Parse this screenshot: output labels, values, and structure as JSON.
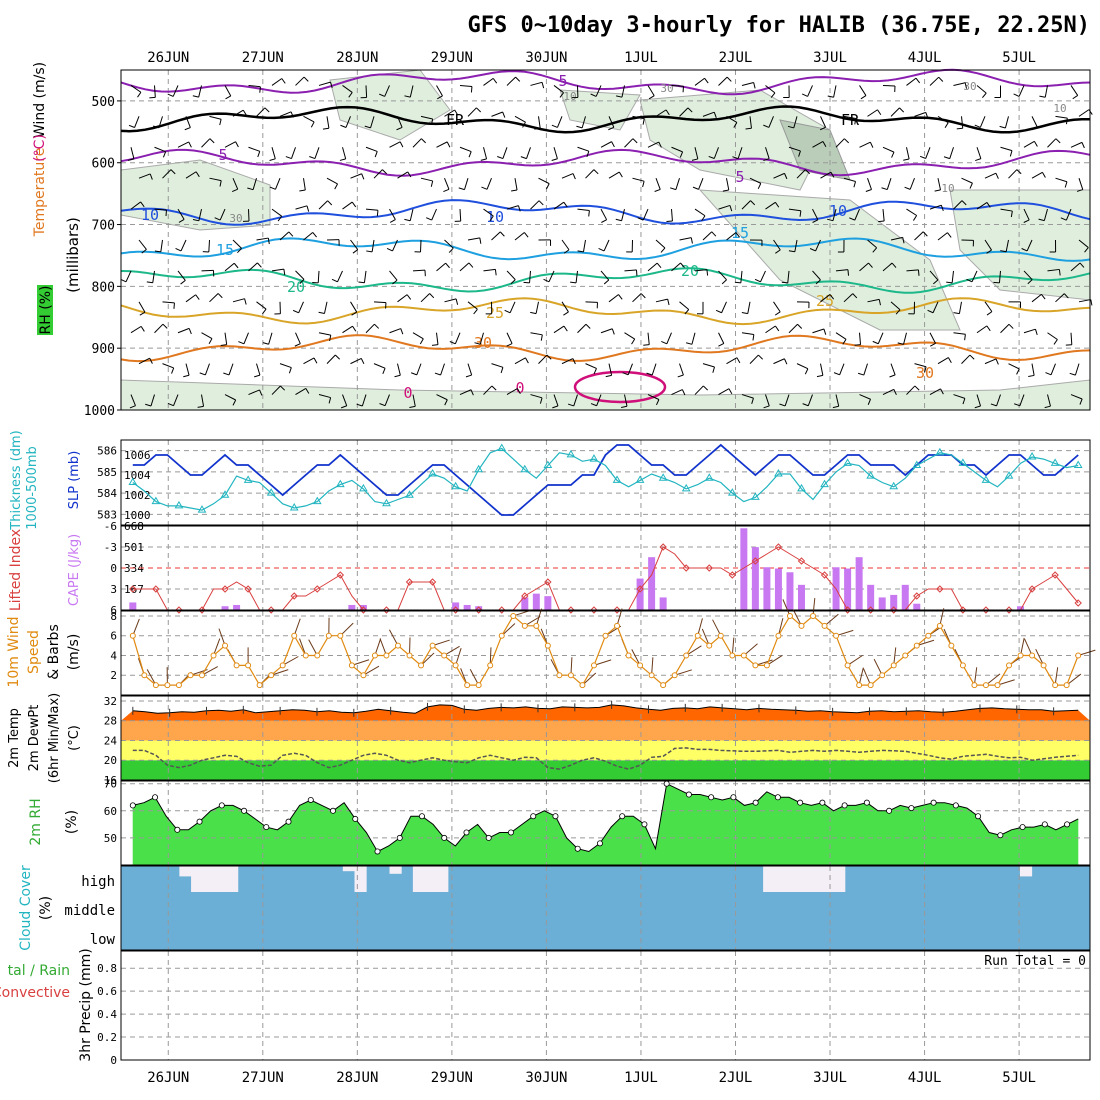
{
  "title": "GFS 0~10day 3-hourly for HALIB (36.75E, 22.25N)",
  "colors": {
    "rh_high": "#00e000",
    "rh_low": "#76d276",
    "temp_band1": "#ff6600",
    "temp_band2": "#ffa64d",
    "temp_band3": "#ffff66",
    "temp_band4": "#33cc33",
    "cloud": "#6baed6",
    "cloud_clear": "#f4eef6",
    "cape": "#c879f2",
    "li_line": "#d94040",
    "slp_line": "#1133cc",
    "thick_line": "#22b5c0",
    "wind_line": "#e08a10"
  },
  "chart_data": {
    "type": "line",
    "x_dates": [
      "26JUN",
      "27JUN",
      "28JUN",
      "29JUN",
      "30JUN",
      "1JUL",
      "2JUL",
      "3JUL",
      "4JUL",
      "5JUL"
    ],
    "x_hours_range": [
      -12,
      234
    ],
    "panels": [
      {
        "id": "upper",
        "ylabel_parts": [
          "RH (%)",
          "Temperature (°C)",
          "Wind (m/s)"
        ],
        "ylabel2": "(millibars)",
        "yticks": [
          500,
          600,
          700,
          800,
          900,
          1000
        ],
        "ylim": [
          450,
          1000
        ],
        "isotherm_labels": [
          "FR",
          "5",
          "10",
          "15",
          "20",
          "25",
          "30",
          "0"
        ],
        "rh_labels": [
          "10",
          "30"
        ],
        "isotherms": [
          {
            "label": "5",
            "pressure": 470,
            "color": "#8b1fb0"
          },
          {
            "label": "FR",
            "pressure": 530,
            "color": "#000000"
          },
          {
            "label": "5",
            "pressure": 600,
            "color": "#8b1fb0"
          },
          {
            "label": "10",
            "pressure": 680,
            "color": "#1f4fdd"
          },
          {
            "label": "15",
            "pressure": 740,
            "color": "#1ea0e0"
          },
          {
            "label": "20",
            "pressure": 790,
            "color": "#1cb88a"
          },
          {
            "label": "25",
            "pressure": 840,
            "color": "#d9a528"
          },
          {
            "label": "30",
            "pressure": 900,
            "color": "#e07820"
          }
        ]
      },
      {
        "id": "slp",
        "ylabel_left": "1000-500mb Thickness (dm)",
        "ylabel_right": "SLP (mb)",
        "yticks_left": [
          583,
          584,
          585,
          586
        ],
        "yticks_right": [
          1000,
          1002,
          1004,
          1006
        ],
        "slp": [
          1005,
          1005,
          1006,
          1006,
          1005,
          1004,
          1004,
          1005,
          1006,
          1005,
          1005,
          1004,
          1003,
          1002,
          1003,
          1004,
          1005,
          1005,
          1006,
          1005,
          1004,
          1003,
          1002,
          1002,
          1003,
          1004,
          1005,
          1005,
          1004,
          1003,
          1002,
          1001,
          1000,
          1000,
          1001,
          1002,
          1003,
          1003,
          1003,
          1004,
          1004,
          1006,
          1007,
          1007,
          1006,
          1005,
          1005,
          1004,
          1004,
          1005,
          1006,
          1007,
          1006,
          1005,
          1004,
          1005,
          1006,
          1006,
          1005,
          1004,
          1004,
          1005,
          1006,
          1006,
          1005,
          1005,
          1005,
          1004,
          1005,
          1006,
          1006,
          1006,
          1005,
          1005,
          1004,
          1005,
          1006,
          1006,
          1005,
          1004,
          1004,
          1005,
          1006
        ],
        "thickness": [
          584.5,
          584.1,
          583.6,
          583.4,
          583.4,
          583.3,
          583.2,
          583.5,
          583.9,
          584.8,
          584.6,
          584.5,
          584.0,
          583.5,
          583.3,
          583.4,
          583.6,
          584.1,
          584.4,
          584.6,
          584.2,
          583.6,
          583.5,
          583.7,
          583.9,
          584.4,
          584.9,
          584.7,
          584.3,
          584.1,
          585.1,
          585.9,
          586.1,
          585.6,
          585.1,
          584.7,
          585.3,
          585.9,
          585.8,
          585.5,
          585.6,
          585.3,
          584.6,
          584.3,
          584.6,
          584.9,
          584.7,
          584.5,
          584.2,
          584.4,
          584.7,
          584.5,
          584.0,
          583.6,
          583.8,
          584.3,
          584.9,
          584.9,
          584.2,
          583.7,
          584.4,
          585.0,
          585.4,
          585.3,
          584.8,
          584.5,
          584.3,
          584.7,
          585.3,
          585.6,
          585.9,
          585.8,
          585.4,
          585.0,
          584.6,
          584.3,
          584.8,
          585.4,
          585.7,
          585.6,
          585.4,
          585.2,
          585.3
        ]
      },
      {
        "id": "cape",
        "ylabel_left": "Lifted Index",
        "ylabel_right": "CAPE (J/kg)",
        "yticks_left": [
          -6,
          -3,
          0,
          3,
          6
        ],
        "yticks_right": [
          167,
          334,
          501,
          668
        ],
        "lifted_index": [
          3,
          3,
          3,
          6,
          6,
          6,
          6,
          3,
          3,
          2,
          3,
          6,
          6,
          6,
          4,
          4,
          3,
          2,
          1,
          4,
          6,
          6,
          6,
          6,
          2,
          2,
          2,
          6,
          6,
          6,
          6,
          6,
          6,
          6,
          4,
          3,
          2,
          6,
          6,
          6,
          6,
          6,
          6,
          6,
          3,
          1,
          -3,
          -2,
          0,
          0,
          0,
          0,
          1,
          0,
          -1,
          -2,
          -3,
          -2,
          -1,
          0,
          1,
          3,
          6,
          6,
          6,
          6,
          6,
          6,
          4,
          3,
          3,
          3,
          6,
          6,
          6,
          6,
          6,
          6,
          3,
          2,
          1,
          3,
          5
        ],
        "cape": [
          60,
          0,
          0,
          0,
          0,
          0,
          0,
          0,
          30,
          40,
          0,
          0,
          0,
          0,
          0,
          0,
          0,
          0,
          0,
          40,
          40,
          0,
          0,
          0,
          0,
          0,
          0,
          0,
          60,
          40,
          30,
          0,
          0,
          0,
          100,
          130,
          110,
          0,
          0,
          0,
          0,
          0,
          0,
          0,
          250,
          420,
          100,
          0,
          0,
          0,
          0,
          0,
          0,
          650,
          500,
          340,
          330,
          300,
          200,
          0,
          0,
          340,
          330,
          420,
          200,
          100,
          120,
          200,
          50,
          0,
          0,
          0,
          0,
          0,
          0,
          0,
          0,
          30,
          0,
          0,
          0,
          0,
          0
        ]
      },
      {
        "id": "wind",
        "ylabel": "10m Wind Speed & Barbs (m/s)",
        "yticks": [
          2,
          4,
          6,
          8
        ],
        "speed": [
          6,
          2,
          1,
          1,
          1,
          2,
          2,
          4,
          5,
          3,
          3,
          1,
          2,
          3,
          6,
          4,
          4,
          6,
          6,
          3,
          2,
          4,
          4,
          5,
          4,
          3,
          5,
          4,
          3,
          1,
          1,
          3,
          6,
          8,
          7,
          7,
          5,
          2,
          2,
          1,
          3,
          6,
          7,
          4,
          3,
          2,
          1,
          2,
          4,
          6,
          5,
          6,
          4,
          4,
          3,
          3,
          6,
          8,
          7,
          8,
          7,
          6,
          3,
          1,
          1,
          2,
          3,
          4,
          5,
          6,
          7,
          5,
          3,
          1,
          1,
          1,
          3,
          4,
          4,
          3,
          1,
          1,
          4
        ],
        "barb_color": "#000000"
      },
      {
        "id": "temp",
        "ylabel": "2m Temp 2m DewPt (6hr Min/Max) (°C)",
        "yticks": [
          16,
          20,
          24,
          28,
          32
        ],
        "temp": [
          30,
          29.8,
          29.5,
          29.6,
          29.8,
          29.7,
          30,
          30.1,
          29.9,
          30.2,
          29.6,
          29.8,
          30,
          30.2,
          30.1,
          29.8,
          30,
          29.7,
          29.6,
          29.9,
          30.3,
          30,
          29.7,
          29.5,
          30.8,
          31.2,
          31.1,
          30.3,
          30.1,
          30.5,
          30.7,
          30.6,
          30.8,
          30.5,
          30.4,
          30.8,
          30.7,
          30.6,
          30.7,
          31.2,
          31,
          30.6,
          30.3,
          30.1,
          30.5,
          30.6,
          30.4,
          30.8,
          30.6,
          30.4,
          30.2,
          30.5,
          30.3,
          30.2,
          30.1,
          29.9,
          30,
          29.8,
          29.7,
          29.6,
          29.9,
          30,
          29.8,
          29.9,
          30,
          29.8,
          29.7,
          29.9,
          30.2,
          30.5,
          30.6,
          30.4,
          30.3,
          30.2,
          30.2,
          29.9,
          30,
          30.1
        ],
        "dewpoint": [
          22,
          22,
          21,
          19,
          18.5,
          19,
          20,
          20.5,
          21,
          20.8,
          19.5,
          18.8,
          19,
          21,
          21.4,
          21,
          19.5,
          18.5,
          19,
          20,
          21,
          21.4,
          21,
          20,
          19.5,
          20,
          20.5,
          20,
          19.7,
          19.5,
          20.5,
          21,
          20.5,
          20,
          20.6,
          20.5,
          18.5,
          18.2,
          19,
          20,
          20.5,
          19.8,
          18.8,
          18.2,
          19,
          20.6,
          20.8,
          22.4,
          22.5,
          22.2,
          22.2,
          22,
          21.9,
          21.8,
          21.8,
          21.9,
          22,
          21.6,
          21.8,
          22,
          21.8,
          22,
          21.8,
          21.6,
          21.8,
          22,
          21.9,
          21.8,
          21.4,
          21,
          20.5,
          20.2,
          20.8,
          21,
          21.2,
          20.8,
          20.5,
          20.6,
          20,
          20.3,
          20.6,
          20.8,
          21
        ]
      },
      {
        "id": "rh",
        "ylabel": "2m RH (%)",
        "yticks": [
          50,
          60,
          70
        ],
        "rh": [
          62,
          62,
          63,
          65,
          58,
          53,
          53,
          55,
          58,
          60,
          62,
          62,
          61,
          60,
          58,
          55,
          53,
          53,
          56,
          62,
          63,
          64,
          62,
          60,
          63,
          57,
          52,
          45,
          47,
          50,
          58,
          58,
          55,
          50,
          47,
          52,
          55,
          50,
          52,
          52,
          55,
          58,
          60,
          58,
          50,
          46,
          45,
          48,
          54,
          58,
          58,
          55,
          46,
          70,
          68,
          66,
          66,
          65,
          64,
          65,
          62,
          63,
          67,
          65,
          65,
          63,
          62,
          63,
          60,
          62,
          62,
          63,
          60,
          60,
          62,
          61,
          62,
          63,
          63,
          62,
          61,
          58,
          52,
          51,
          53,
          54,
          54,
          55,
          53,
          55,
          57
        ],
        "rh_display": [
          62,
          63,
          65,
          58,
          53,
          53,
          56,
          60,
          62,
          62,
          60,
          57,
          54,
          53,
          56,
          62,
          64,
          62,
          60,
          63,
          57,
          52,
          45,
          47,
          50,
          58,
          58,
          55,
          50,
          47,
          52,
          55,
          50,
          52,
          52,
          55,
          58,
          60,
          58,
          50,
          46,
          45,
          48,
          54,
          58,
          58,
          55,
          46,
          70,
          68,
          66,
          66,
          65,
          64,
          65,
          62,
          63,
          67,
          65,
          65,
          63,
          62,
          63,
          60,
          62,
          62,
          63,
          60,
          60,
          62,
          61,
          62,
          63,
          63,
          62,
          61,
          58,
          52,
          51,
          53,
          54,
          54,
          55,
          53,
          55,
          57
        ]
      },
      {
        "id": "cloud",
        "ylabel": "Cloud Cover (%)",
        "levels": [
          "high",
          "middle",
          "low"
        ],
        "high_cover": [
          100,
          100,
          100,
          100,
          100,
          60,
          0,
          0,
          0,
          0,
          100,
          100,
          100,
          100,
          100,
          100,
          100,
          100,
          100,
          80,
          0,
          100,
          100,
          70,
          100,
          0,
          0,
          0,
          100,
          100,
          100,
          100,
          100,
          100,
          100,
          100,
          100,
          100,
          100,
          100,
          100,
          100,
          100,
          100,
          100,
          100,
          100,
          100,
          100,
          100,
          100,
          100,
          100,
          100,
          100,
          0,
          0,
          0,
          0,
          0,
          0,
          0,
          100,
          100,
          100,
          100,
          100,
          100,
          100,
          100,
          100,
          100,
          100,
          100,
          100,
          100,
          100,
          60,
          100,
          100,
          100,
          100,
          100
        ]
      },
      {
        "id": "precip",
        "ylabel": "3hr Precip (mm)",
        "ylabel_left": "Total / Rain Convective",
        "yticks": [
          0,
          0.2,
          0.4,
          0.6,
          0.8
        ],
        "run_total": "Run Total = 0"
      }
    ]
  }
}
